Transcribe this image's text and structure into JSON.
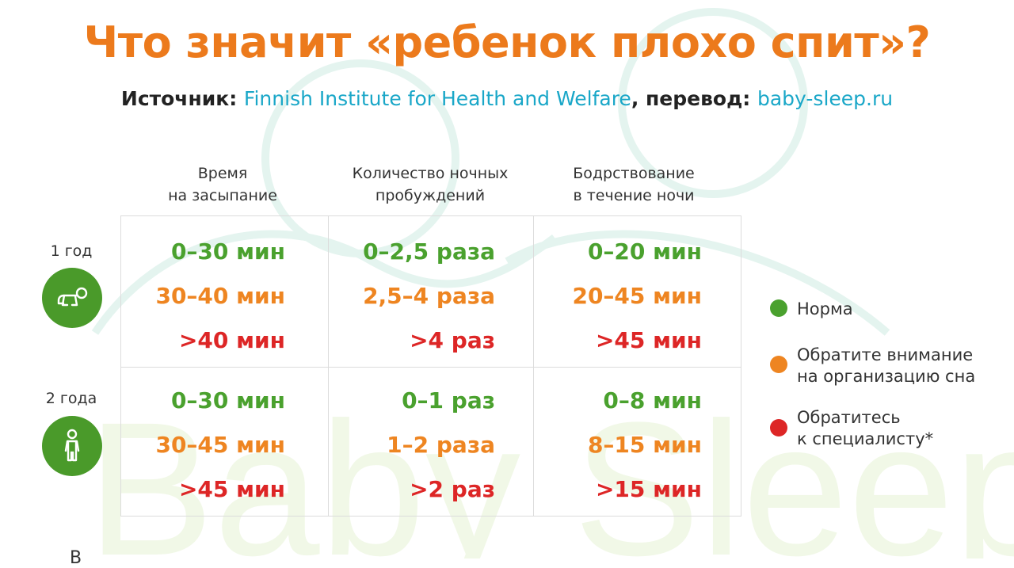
{
  "title": "Что значит «ребенок плохо спит»?",
  "subtitle": {
    "source_label": "Источник: ",
    "source_name": "Finnish Institute for Health and Welfare",
    "translation_label": ", перевод: ",
    "translation_site": "baby-sleep.ru"
  },
  "watermark": "Baby Sleep",
  "columns": [
    {
      "line1": "Время",
      "line2": "на засыпание"
    },
    {
      "line1": "Количество ночных",
      "line2": "пробуждений"
    },
    {
      "line1": "Бодрствование",
      "line2": "в течение ночи"
    }
  ],
  "rows": [
    {
      "label": "1 год",
      "icon": "crawling-baby-icon",
      "cells": [
        [
          "0–30 мин",
          "30–40 мин",
          ">40 мин"
        ],
        [
          "0–2,5 раза",
          "2,5–4 раза",
          ">4 раз"
        ],
        [
          "0–20 мин",
          "20–45 мин",
          ">45 мин"
        ]
      ]
    },
    {
      "label": "2 года",
      "icon": "standing-child-icon",
      "cells": [
        [
          "0–30 мин",
          "30–45 мин",
          ">45 мин"
        ],
        [
          "0–1 раз",
          "1–2 раза",
          ">2 раз"
        ],
        [
          "0–8 мин",
          "8–15 мин",
          ">15 мин"
        ]
      ]
    }
  ],
  "legend": [
    {
      "color": "#4aa12e",
      "text": "Норма"
    },
    {
      "color": "#ee8521",
      "text": "Обратите внимание\nна организацию сна"
    },
    {
      "color": "#dd2626",
      "text": "Обратитесь\nк  специалисту*"
    }
  ],
  "colors": {
    "norm": "#4aa12e",
    "attention": "#ee8521",
    "specialist": "#dd2626",
    "title": "#ec7a1c",
    "link": "#1aa7c8"
  },
  "bottom_fragment": "В"
}
